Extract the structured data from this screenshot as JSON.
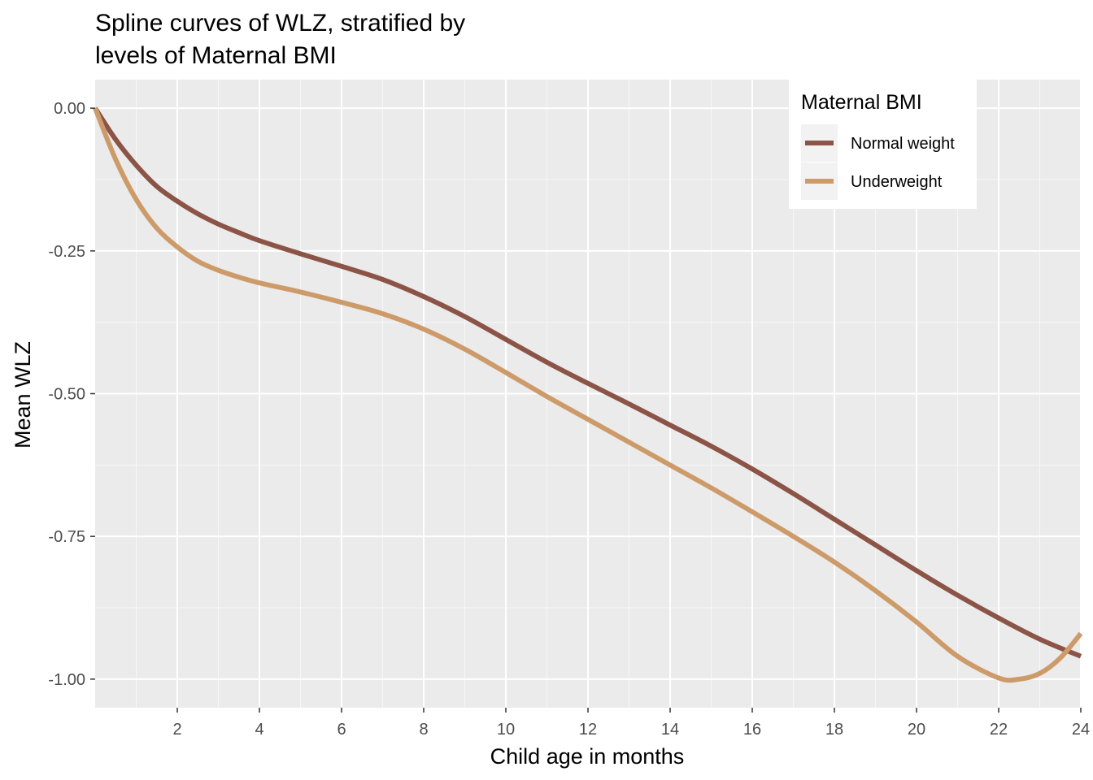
{
  "chart_data": {
    "type": "line",
    "title_lines": [
      "Spline curves of WLZ, stratified by",
      "levels of Maternal BMI"
    ],
    "xlabel": "Child age in months",
    "ylabel": "Mean WLZ",
    "xlim": [
      0,
      24
    ],
    "ylim": [
      -1.05,
      0.05
    ],
    "x_ticks": [
      2,
      4,
      6,
      8,
      10,
      12,
      14,
      16,
      18,
      20,
      22,
      24
    ],
    "x_tick_labels": [
      "2",
      "4",
      "6",
      "8",
      "10",
      "12",
      "14",
      "16",
      "18",
      "20",
      "22",
      "24"
    ],
    "y_ticks": [
      0,
      -0.25,
      -0.5,
      -0.75,
      -1.0
    ],
    "y_tick_labels": [
      "0.00",
      "-0.25",
      "-0.50",
      "-0.75",
      "-1.00"
    ],
    "grid": true,
    "legend": {
      "title": "Maternal BMI",
      "position": "top-right",
      "entries": [
        "Normal weight",
        "Underweight"
      ]
    },
    "series": [
      {
        "name": "Normal weight",
        "color": "#8B5446",
        "x": [
          0,
          0.5,
          1,
          1.5,
          2,
          2.5,
          3,
          3.5,
          4,
          5,
          6,
          7,
          8,
          9,
          10,
          11,
          12,
          13,
          14,
          15,
          16,
          17,
          18,
          19,
          20,
          21,
          22,
          23,
          24
        ],
        "y": [
          0,
          -0.055,
          -0.1,
          -0.137,
          -0.163,
          -0.185,
          -0.203,
          -0.218,
          -0.232,
          -0.255,
          -0.277,
          -0.3,
          -0.33,
          -0.365,
          -0.405,
          -0.445,
          -0.482,
          -0.518,
          -0.555,
          -0.592,
          -0.632,
          -0.675,
          -0.72,
          -0.765,
          -0.81,
          -0.853,
          -0.893,
          -0.93,
          -0.96
        ]
      },
      {
        "name": "Underweight",
        "color": "#CD9B6A",
        "x": [
          0,
          0.5,
          1,
          1.5,
          2,
          2.5,
          3,
          3.5,
          4,
          5,
          6,
          7,
          8,
          9,
          10,
          11,
          12,
          13,
          14,
          15,
          16,
          17,
          18,
          19,
          20,
          21,
          22,
          22.5,
          23,
          23.5,
          24
        ],
        "y": [
          0,
          -0.09,
          -0.16,
          -0.21,
          -0.243,
          -0.268,
          -0.284,
          -0.296,
          -0.306,
          -0.322,
          -0.34,
          -0.36,
          -0.387,
          -0.422,
          -0.463,
          -0.505,
          -0.545,
          -0.585,
          -0.625,
          -0.665,
          -0.707,
          -0.75,
          -0.795,
          -0.845,
          -0.9,
          -0.96,
          -0.998,
          -1.0,
          -0.99,
          -0.963,
          -0.92
        ]
      }
    ]
  }
}
